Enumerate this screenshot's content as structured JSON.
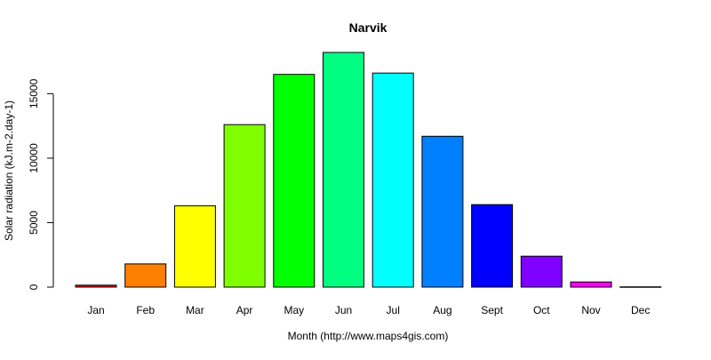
{
  "chart_data": {
    "type": "bar",
    "title": "Narvik",
    "xlabel": "Month (http://www.maps4gis.com)",
    "ylabel": "Solar radiation (kJ.m-2.day-1)",
    "categories": [
      "Jan",
      "Feb",
      "Mar",
      "Apr",
      "May",
      "Jun",
      "Jul",
      "Aug",
      "Sept",
      "Oct",
      "Nov",
      "Dec"
    ],
    "values": [
      150,
      1800,
      6300,
      12600,
      16500,
      18200,
      16600,
      11700,
      6400,
      2400,
      400,
      20
    ],
    "colors": [
      "#FF0000",
      "#FF8000",
      "#FFFF00",
      "#80FF00",
      "#00FF00",
      "#00FF80",
      "#00FFFF",
      "#0080FF",
      "#0000FF",
      "#8000FF",
      "#FF00FF",
      "#FF0080"
    ],
    "ylim": [
      0,
      18200
    ],
    "yticks": [
      0,
      5000,
      10000,
      15000
    ],
    "ytick_labels": [
      "0",
      "5000",
      "10000",
      "15000"
    ],
    "grid": false,
    "legend": "none"
  }
}
